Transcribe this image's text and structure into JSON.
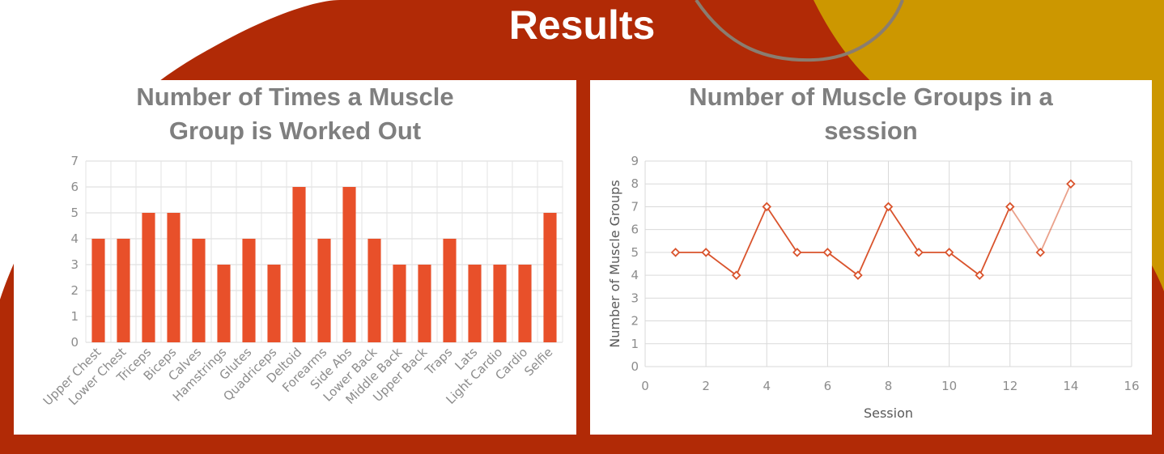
{
  "slide": {
    "title": "Results",
    "colors": {
      "background_red": "#b12a06",
      "accent_gold": "#cc9700",
      "circle_outline": "#8a7d70",
      "panel": "#ffffff"
    }
  },
  "chart_data": [
    {
      "type": "bar",
      "title_line1": "Number of Times a Muscle",
      "title_line2": "Group is Worked Out",
      "categories": [
        "Upper Chest",
        "Lower Chest",
        "Triceps",
        "Biceps",
        "Calves",
        "Hamstrings",
        "Glutes",
        "Quadriceps",
        "Deltoid",
        "Forearms",
        "Side Abs",
        "Lower Back",
        "Middle Back",
        "Upper Back",
        "Traps",
        "Lats",
        "Light Cardio",
        "Cardio",
        "Selfie"
      ],
      "values": [
        4,
        4,
        5,
        5,
        4,
        3,
        4,
        3,
        6,
        4,
        6,
        4,
        3,
        3,
        4,
        3,
        3,
        3,
        5
      ],
      "ylim": [
        0,
        7
      ],
      "yticks": [
        0,
        1,
        2,
        3,
        4,
        5,
        6,
        7
      ],
      "color": "#e8502a",
      "grid": true
    },
    {
      "type": "line",
      "title_line1": "Number of Muscle Groups in a",
      "title_line2": "session",
      "xlabel": "Session",
      "ylabel": "Number of Muscle Groups",
      "x": [
        1,
        2,
        3,
        4,
        5,
        6,
        7,
        8,
        9,
        10,
        11,
        12,
        13,
        14
      ],
      "y": [
        5,
        5,
        4,
        7,
        5,
        5,
        4,
        7,
        5,
        5,
        4,
        7,
        5,
        8
      ],
      "xlim": [
        0,
        16
      ],
      "ylim": [
        0,
        9
      ],
      "xticks": [
        0,
        2,
        4,
        6,
        8,
        10,
        12,
        14,
        16
      ],
      "yticks": [
        0,
        1,
        2,
        3,
        4,
        5,
        6,
        7,
        8,
        9
      ],
      "color": "#d9532c",
      "marker": "diamond",
      "grid": true
    }
  ]
}
